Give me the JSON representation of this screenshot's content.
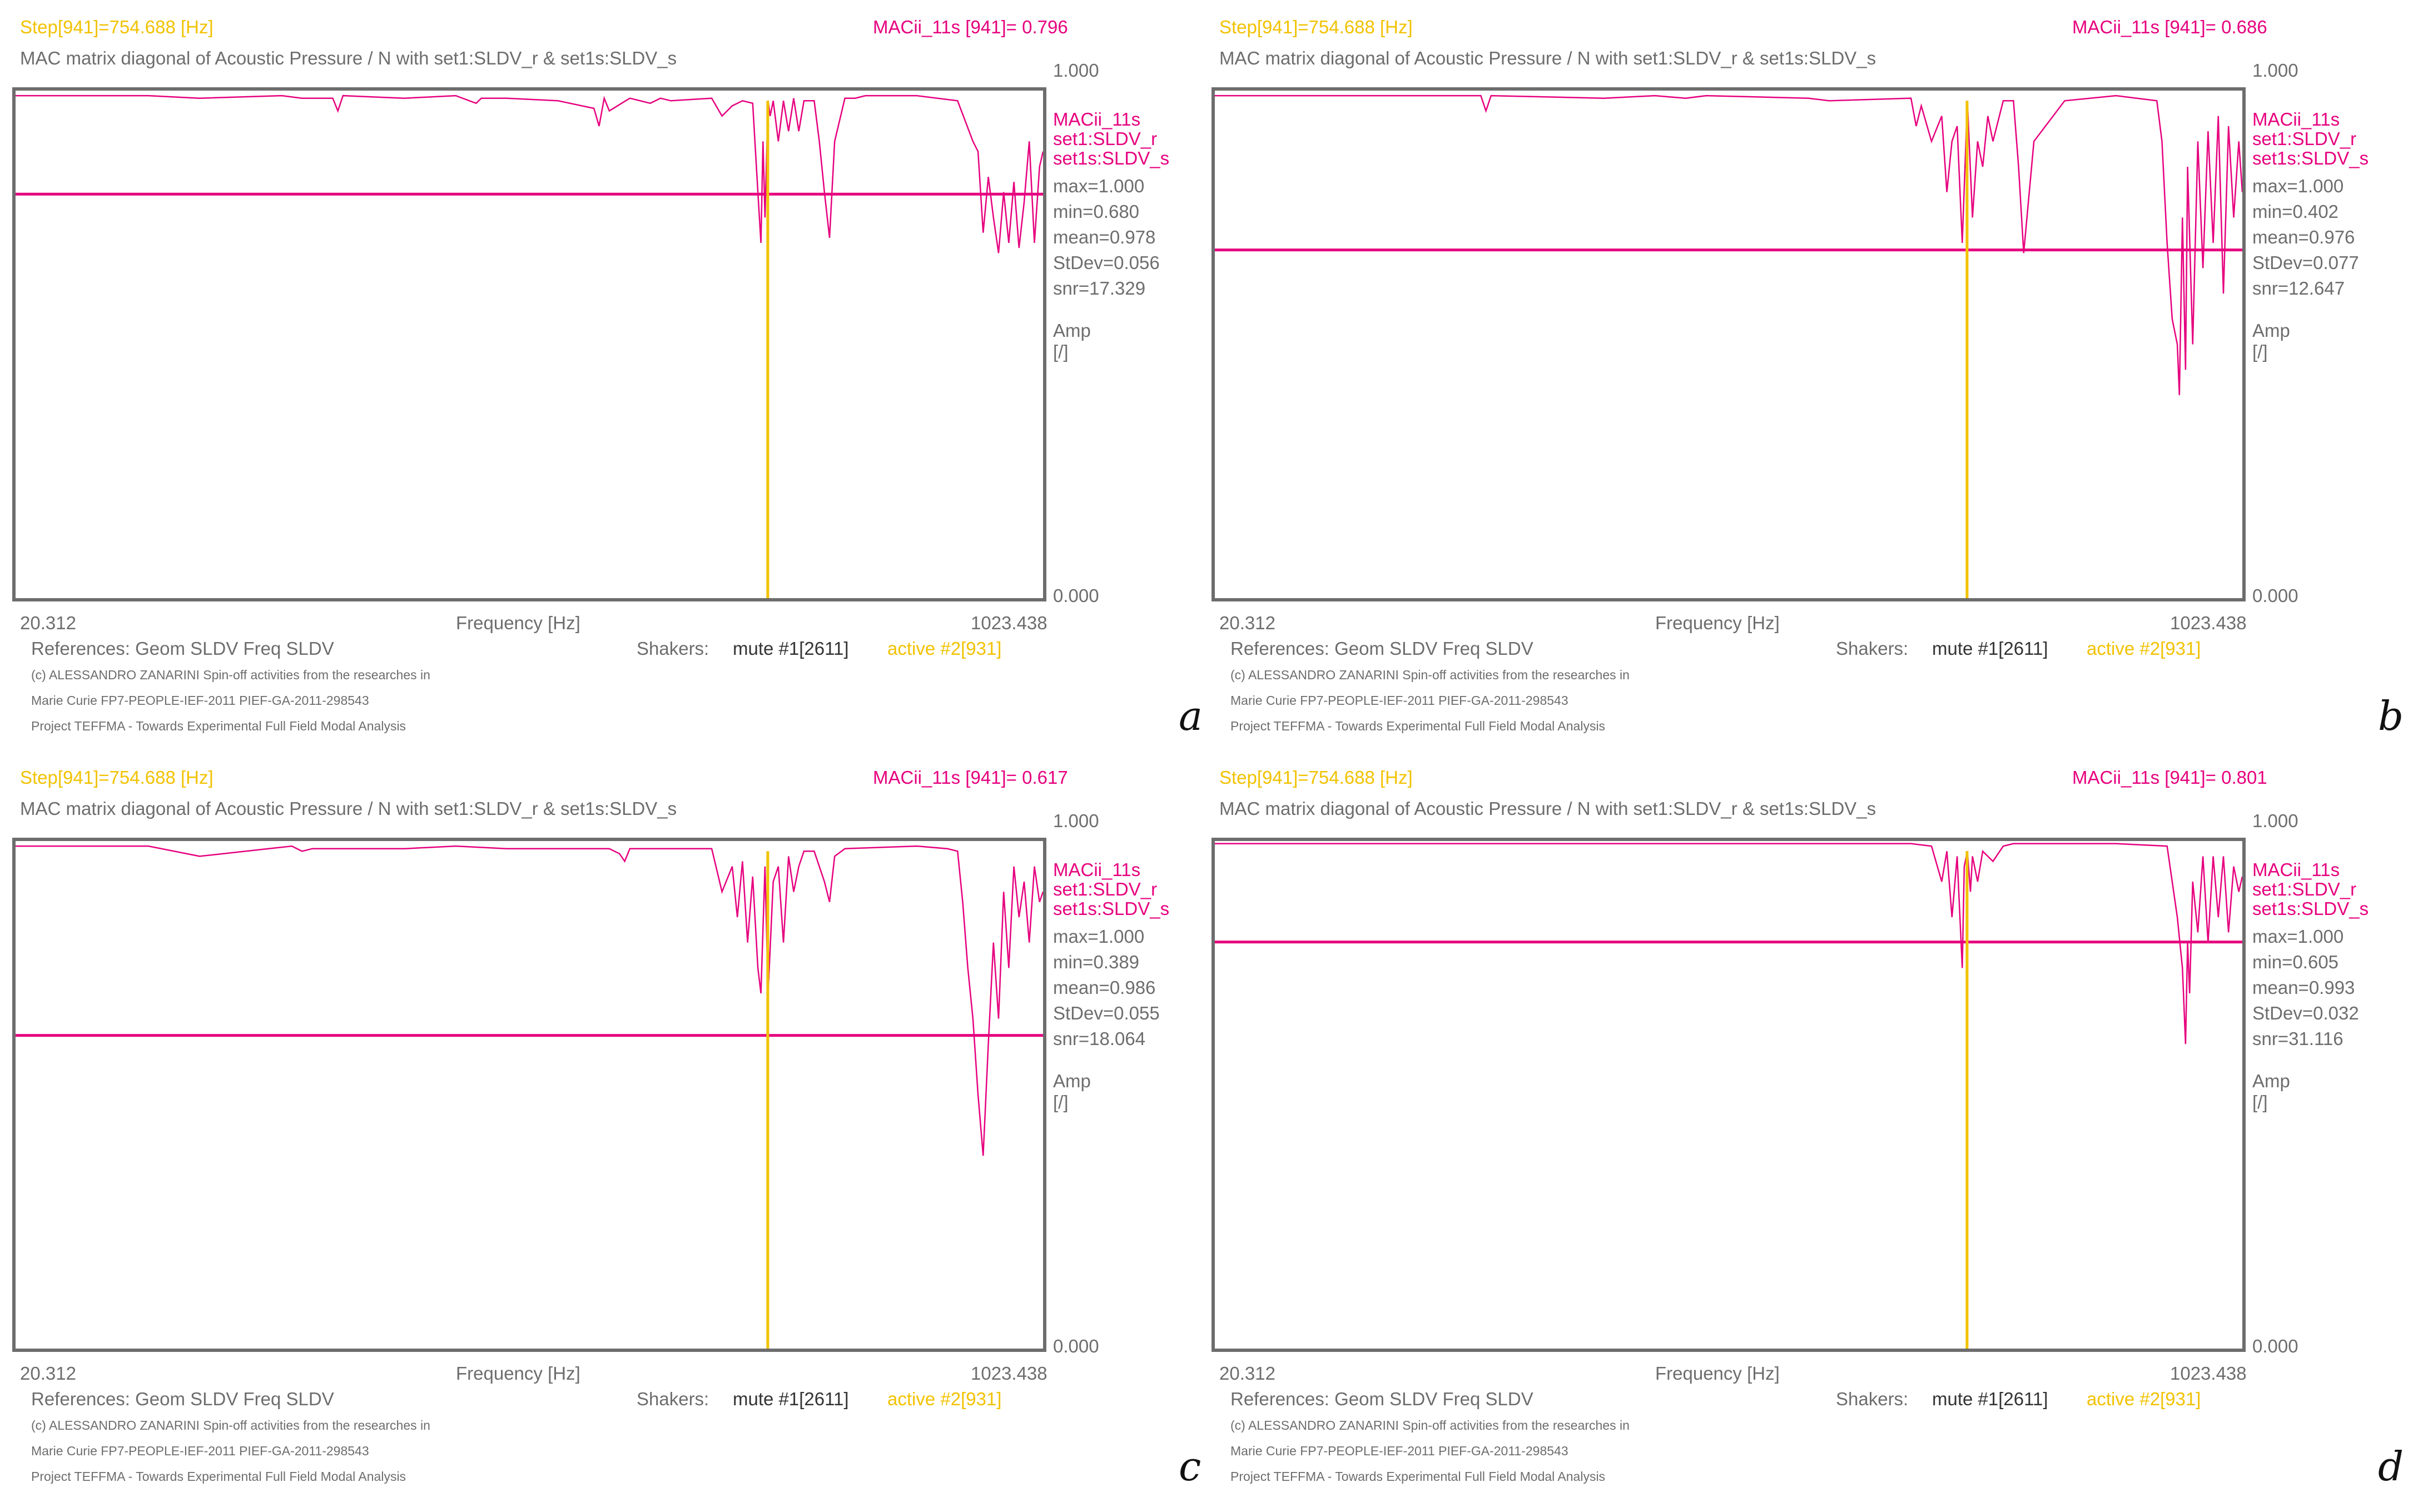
{
  "chart_data": [
    {
      "type": "line",
      "panel_label": "a",
      "step_label": "Step[941]=754.688 [Hz]",
      "mac_label": "MACii_11s [941]= 0.796",
      "title": "MAC matrix diagonal of Acoustic Pressure / N with set1:SLDV_r & set1s:SLDV_s",
      "xlabel": "Frequency [Hz]",
      "xlim": [
        20.312,
        1023.438
      ],
      "ylim": [
        0.0,
        1.0
      ],
      "ytick_top": "1.000",
      "ytick_bottom": "0.000",
      "xtick_left": "20.312",
      "xtick_right": "1023.438",
      "ylabel": [
        "Amp",
        "[/]"
      ],
      "legend": [
        "MACii_11s",
        "set1:SLDV_r",
        "set1s:SLDV_s"
      ],
      "stats": [
        "max=1.000",
        "min=0.680",
        "mean=0.978",
        "StDev=0.056",
        "snr=17.329"
      ],
      "threshold": 0.796,
      "cursor_x": 754.688,
      "cursor_bottom": 0.0,
      "cursor_top": 0.98,
      "colors": {
        "series": "#e6007e",
        "cursor": "#f2c200",
        "frame": "#6d6d6d"
      },
      "series": [
        {
          "x": [
            20.312,
            100,
            150,
            200,
            280,
            300,
            330,
            335,
            340,
            400,
            450,
            470,
            475,
            480,
            500,
            550,
            585,
            590,
            595,
            600,
            620,
            640,
            650,
            660,
            700,
            710,
            720,
            730,
            740,
            745,
            748,
            750,
            752,
            755,
            757,
            760,
            765,
            770,
            775,
            780,
            785,
            790,
            800,
            805,
            810,
            815,
            820,
            830,
            840,
            850,
            870,
            900,
            940,
            955,
            960,
            965,
            970,
            975,
            980,
            985,
            990,
            995,
            1000,
            1005,
            1010,
            1015,
            1020,
            1023.438
          ],
          "y": [
            0.99,
            0.99,
            0.99,
            0.985,
            0.99,
            0.985,
            0.985,
            0.96,
            0.99,
            0.985,
            0.99,
            0.975,
            0.985,
            0.985,
            0.985,
            0.98,
            0.965,
            0.93,
            0.985,
            0.96,
            0.985,
            0.975,
            0.985,
            0.98,
            0.985,
            0.95,
            0.97,
            0.98,
            0.975,
            0.8,
            0.7,
            0.9,
            0.75,
            0.98,
            0.95,
            0.98,
            0.9,
            0.98,
            0.92,
            0.985,
            0.92,
            0.98,
            0.98,
            0.9,
            0.8,
            0.71,
            0.9,
            0.985,
            0.985,
            0.99,
            0.99,
            0.99,
            0.98,
            0.9,
            0.88,
            0.72,
            0.83,
            0.75,
            0.68,
            0.8,
            0.7,
            0.82,
            0.69,
            0.78,
            0.9,
            0.7,
            0.85,
            0.88
          ]
        }
      ]
    },
    {
      "type": "line",
      "panel_label": "b",
      "step_label": "Step[941]=754.688 [Hz]",
      "mac_label": "MACii_11s [941]= 0.686",
      "title": "MAC matrix diagonal of Acoustic Pressure / N with set1:SLDV_r & set1s:SLDV_s",
      "xlabel": "Frequency [Hz]",
      "xlim": [
        20.312,
        1023.438
      ],
      "ylim": [
        0.0,
        1.0
      ],
      "ytick_top": "1.000",
      "ytick_bottom": "0.000",
      "xtick_left": "20.312",
      "xtick_right": "1023.438",
      "ylabel": [
        "Amp",
        "[/]"
      ],
      "legend": [
        "MACii_11s",
        "set1:SLDV_r",
        "set1s:SLDV_s"
      ],
      "stats": [
        "max=1.000",
        "min=0.402",
        "mean=0.976",
        "StDev=0.077",
        "snr=12.647"
      ],
      "threshold": 0.686,
      "cursor_x": 754.688,
      "cursor_bottom": 0.0,
      "cursor_top": 0.98,
      "colors": {
        "series": "#e6007e",
        "cursor": "#f2c200",
        "frame": "#6d6d6d"
      },
      "series": [
        {
          "x": [
            20.312,
            200,
            280,
            285,
            290,
            400,
            450,
            480,
            500,
            600,
            620,
            700,
            705,
            710,
            720,
            730,
            735,
            740,
            745,
            750,
            755,
            760,
            765,
            770,
            775,
            780,
            790,
            800,
            805,
            810,
            820,
            850,
            900,
            940,
            945,
            950,
            955,
            960,
            962,
            965,
            968,
            970,
            975,
            980,
            985,
            990,
            995,
            1000,
            1005,
            1010,
            1015,
            1020,
            1023.438
          ],
          "y": [
            0.99,
            0.99,
            0.99,
            0.96,
            0.99,
            0.985,
            0.99,
            0.985,
            0.99,
            0.985,
            0.98,
            0.985,
            0.93,
            0.97,
            0.9,
            0.95,
            0.8,
            0.9,
            0.93,
            0.7,
            0.98,
            0.75,
            0.9,
            0.85,
            0.95,
            0.9,
            0.98,
            0.98,
            0.85,
            0.68,
            0.9,
            0.98,
            0.99,
            0.98,
            0.9,
            0.7,
            0.55,
            0.5,
            0.4,
            0.75,
            0.45,
            0.85,
            0.5,
            0.9,
            0.65,
            0.92,
            0.7,
            0.95,
            0.6,
            0.93,
            0.75,
            0.9,
            0.8
          ]
        }
      ]
    },
    {
      "type": "line",
      "panel_label": "c",
      "step_label": "Step[941]=754.688 [Hz]",
      "mac_label": "MACii_11s [941]= 0.617",
      "title": "MAC matrix diagonal of Acoustic Pressure / N with set1:SLDV_r & set1s:SLDV_s",
      "xlabel": "Frequency [Hz]",
      "xlim": [
        20.312,
        1023.438
      ],
      "ylim": [
        0.0,
        1.0
      ],
      "ytick_top": "1.000",
      "ytick_bottom": "0.000",
      "xtick_left": "20.312",
      "xtick_right": "1023.438",
      "ylabel": [
        "Amp",
        "[/]"
      ],
      "legend": [
        "MACii_11s",
        "set1:SLDV_r",
        "set1s:SLDV_s"
      ],
      "stats": [
        "max=1.000",
        "min=0.389",
        "mean=0.986",
        "StDev=0.055",
        "snr=18.064"
      ],
      "threshold": 0.617,
      "cursor_x": 754.688,
      "cursor_bottom": 0.0,
      "cursor_top": 0.98,
      "colors": {
        "series": "#e6007e",
        "cursor": "#f2c200",
        "frame": "#6d6d6d"
      },
      "series": [
        {
          "x": [
            20.312,
            150,
            200,
            290,
            300,
            310,
            400,
            450,
            500,
            600,
            610,
            615,
            620,
            700,
            710,
            720,
            725,
            730,
            735,
            740,
            745,
            748,
            752,
            755,
            760,
            765,
            770,
            775,
            780,
            785,
            790,
            800,
            810,
            815,
            820,
            830,
            900,
            930,
            940,
            945,
            950,
            955,
            960,
            965,
            970,
            975,
            980,
            985,
            990,
            995,
            1000,
            1005,
            1010,
            1015,
            1020,
            1023.438
          ],
          "y": [
            0.99,
            0.99,
            0.97,
            0.99,
            0.98,
            0.985,
            0.985,
            0.99,
            0.985,
            0.985,
            0.975,
            0.96,
            0.985,
            0.985,
            0.9,
            0.95,
            0.85,
            0.96,
            0.8,
            0.93,
            0.75,
            0.7,
            0.95,
            0.7,
            0.92,
            0.95,
            0.8,
            0.97,
            0.9,
            0.95,
            0.98,
            0.98,
            0.92,
            0.88,
            0.97,
            0.985,
            0.99,
            0.985,
            0.98,
            0.88,
            0.75,
            0.65,
            0.5,
            0.38,
            0.6,
            0.8,
            0.65,
            0.9,
            0.75,
            0.95,
            0.85,
            0.92,
            0.8,
            0.95,
            0.88,
            0.9
          ]
        }
      ]
    },
    {
      "type": "line",
      "panel_label": "d",
      "step_label": "Step[941]=754.688 [Hz]",
      "mac_label": "MACii_11s [941]= 0.801",
      "title": "MAC matrix diagonal of Acoustic Pressure / N with set1:SLDV_r & set1s:SLDV_s",
      "xlabel": "Frequency [Hz]",
      "xlim": [
        20.312,
        1023.438
      ],
      "ylim": [
        0.0,
        1.0
      ],
      "ytick_top": "1.000",
      "ytick_bottom": "0.000",
      "xtick_left": "20.312",
      "xtick_right": "1023.438",
      "ylabel": [
        "Amp",
        "[/]"
      ],
      "legend": [
        "MACii_11s",
        "set1:SLDV_r",
        "set1s:SLDV_s"
      ],
      "stats": [
        "max=1.000",
        "min=0.605",
        "mean=0.993",
        "StDev=0.032",
        "snr=31.116"
      ],
      "threshold": 0.801,
      "cursor_x": 754.688,
      "cursor_bottom": 0.0,
      "cursor_top": 0.98,
      "colors": {
        "series": "#e6007e",
        "cursor": "#f2c200",
        "frame": "#6d6d6d"
      },
      "series": [
        {
          "x": [
            20.312,
            200,
            400,
            600,
            700,
            720,
            730,
            735,
            740,
            745,
            750,
            752,
            755,
            758,
            760,
            765,
            770,
            780,
            790,
            800,
            850,
            900,
            950,
            960,
            965,
            968,
            970,
            972,
            975,
            980,
            985,
            990,
            995,
            1000,
            1005,
            1010,
            1015,
            1020,
            1023.438
          ],
          "y": [
            0.995,
            0.995,
            0.995,
            0.995,
            0.995,
            0.99,
            0.92,
            0.98,
            0.85,
            0.97,
            0.75,
            0.95,
            0.98,
            0.9,
            0.97,
            0.92,
            0.98,
            0.96,
            0.99,
            0.995,
            0.995,
            0.995,
            0.99,
            0.85,
            0.75,
            0.6,
            0.8,
            0.7,
            0.92,
            0.82,
            0.97,
            0.8,
            0.97,
            0.85,
            0.97,
            0.82,
            0.95,
            0.9,
            0.93
          ]
        }
      ]
    }
  ],
  "footer": {
    "references": "References: Geom SLDV Freq SLDV",
    "shakers": "Shakers:",
    "mute": "mute #1[2611]",
    "active": "active #2[931]",
    "copyright": [
      "(c) ALESSANDRO ZANARINI Spin-off activities from the researches in",
      "Marie Curie FP7-PEOPLE-IEF-2011 PIEF-GA-2011-298543",
      "Project TEFFMA - Towards Experimental Full Field Modal Analysis"
    ]
  }
}
